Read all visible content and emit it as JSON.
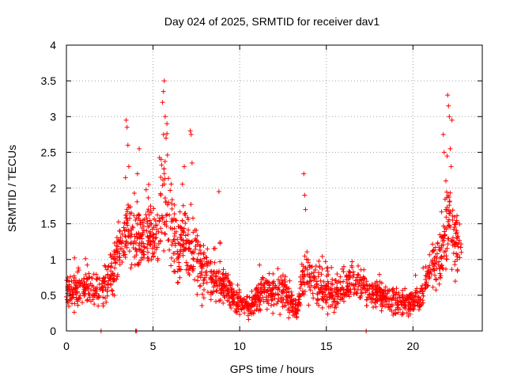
{
  "chart_data": {
    "type": "scatter",
    "title": "Day 024 of 2025, SRMTID for receiver dav1",
    "xlabel": "GPS time / hours",
    "ylabel": "SRMTID / TECUs",
    "xlim": [
      0,
      24
    ],
    "ylim": [
      0,
      4
    ],
    "xticks": [
      0,
      5,
      10,
      15,
      20
    ],
    "xtick_labels": [
      "0",
      "5",
      "10",
      "15",
      "20"
    ],
    "yticks": [
      0,
      0.5,
      1,
      1.5,
      2,
      2.5,
      3,
      3.5,
      4
    ],
    "ytick_labels": [
      "0",
      "0.5",
      "1",
      "1.5",
      "2",
      "2.5",
      "3",
      "3.5",
      "4"
    ],
    "grid": true,
    "marker": "+",
    "color": "#ff0000",
    "data_window_hours": [
      0,
      22.8
    ],
    "baseline_points": [
      {
        "x": 2.0,
        "y": 0.0
      },
      {
        "x": 4.0,
        "y": 0.0
      },
      {
        "x": 4.05,
        "y": 0.0
      },
      {
        "x": 17.3,
        "y": 0.0
      }
    ],
    "envelope": [
      {
        "x": 0.0,
        "y": 0.55,
        "spread": 0.25
      },
      {
        "x": 1.0,
        "y": 0.62,
        "spread": 0.3
      },
      {
        "x": 2.0,
        "y": 0.55,
        "spread": 0.25
      },
      {
        "x": 2.7,
        "y": 0.85,
        "spread": 0.35
      },
      {
        "x": 3.5,
        "y": 1.5,
        "spread": 0.6
      },
      {
        "x": 4.0,
        "y": 1.2,
        "spread": 0.55
      },
      {
        "x": 4.6,
        "y": 1.4,
        "spread": 0.55
      },
      {
        "x": 5.2,
        "y": 1.3,
        "spread": 0.55
      },
      {
        "x": 5.6,
        "y": 1.9,
        "spread": 0.8
      },
      {
        "x": 6.2,
        "y": 1.2,
        "spread": 0.6
      },
      {
        "x": 7.0,
        "y": 1.3,
        "spread": 0.6
      },
      {
        "x": 7.8,
        "y": 0.9,
        "spread": 0.45
      },
      {
        "x": 8.8,
        "y": 0.75,
        "spread": 0.35
      },
      {
        "x": 9.5,
        "y": 0.5,
        "spread": 0.2
      },
      {
        "x": 10.5,
        "y": 0.35,
        "spread": 0.18
      },
      {
        "x": 11.5,
        "y": 0.55,
        "spread": 0.25
      },
      {
        "x": 12.5,
        "y": 0.55,
        "spread": 0.3
      },
      {
        "x": 13.3,
        "y": 0.3,
        "spread": 0.15
      },
      {
        "x": 13.8,
        "y": 0.85,
        "spread": 0.4
      },
      {
        "x": 14.5,
        "y": 0.6,
        "spread": 0.3
      },
      {
        "x": 15.5,
        "y": 0.55,
        "spread": 0.3
      },
      {
        "x": 16.5,
        "y": 0.7,
        "spread": 0.3
      },
      {
        "x": 17.5,
        "y": 0.55,
        "spread": 0.25
      },
      {
        "x": 18.5,
        "y": 0.45,
        "spread": 0.25
      },
      {
        "x": 19.5,
        "y": 0.4,
        "spread": 0.2
      },
      {
        "x": 20.5,
        "y": 0.45,
        "spread": 0.2
      },
      {
        "x": 21.0,
        "y": 0.9,
        "spread": 0.35
      },
      {
        "x": 21.6,
        "y": 1.0,
        "spread": 0.45
      },
      {
        "x": 22.0,
        "y": 1.5,
        "spread": 0.7
      },
      {
        "x": 22.8,
        "y": 1.0,
        "spread": 0.4
      }
    ],
    "spikes": [
      {
        "x": 3.45,
        "y": 2.95
      },
      {
        "x": 3.5,
        "y": 2.85
      },
      {
        "x": 3.55,
        "y": 2.6
      },
      {
        "x": 3.6,
        "y": 2.3
      },
      {
        "x": 4.2,
        "y": 2.55
      },
      {
        "x": 4.1,
        "y": 2.2
      },
      {
        "x": 5.55,
        "y": 3.2
      },
      {
        "x": 5.6,
        "y": 3.35
      },
      {
        "x": 5.65,
        "y": 3.5
      },
      {
        "x": 5.7,
        "y": 3.0
      },
      {
        "x": 5.75,
        "y": 2.7
      },
      {
        "x": 5.8,
        "y": 2.9
      },
      {
        "x": 5.6,
        "y": 2.75
      },
      {
        "x": 7.15,
        "y": 2.8
      },
      {
        "x": 7.2,
        "y": 2.75
      },
      {
        "x": 7.25,
        "y": 2.35
      },
      {
        "x": 6.8,
        "y": 2.3
      },
      {
        "x": 8.8,
        "y": 1.95
      },
      {
        "x": 13.7,
        "y": 2.2
      },
      {
        "x": 13.75,
        "y": 1.9
      },
      {
        "x": 13.8,
        "y": 1.7
      },
      {
        "x": 21.8,
        "y": 2.5
      },
      {
        "x": 21.9,
        "y": 2.1
      },
      {
        "x": 22.0,
        "y": 3.3
      },
      {
        "x": 22.05,
        "y": 3.15
      },
      {
        "x": 22.1,
        "y": 3.0
      },
      {
        "x": 22.15,
        "y": 2.55
      },
      {
        "x": 22.2,
        "y": 2.3
      },
      {
        "x": 22.25,
        "y": 2.95
      },
      {
        "x": 21.75,
        "y": 2.75
      }
    ]
  }
}
